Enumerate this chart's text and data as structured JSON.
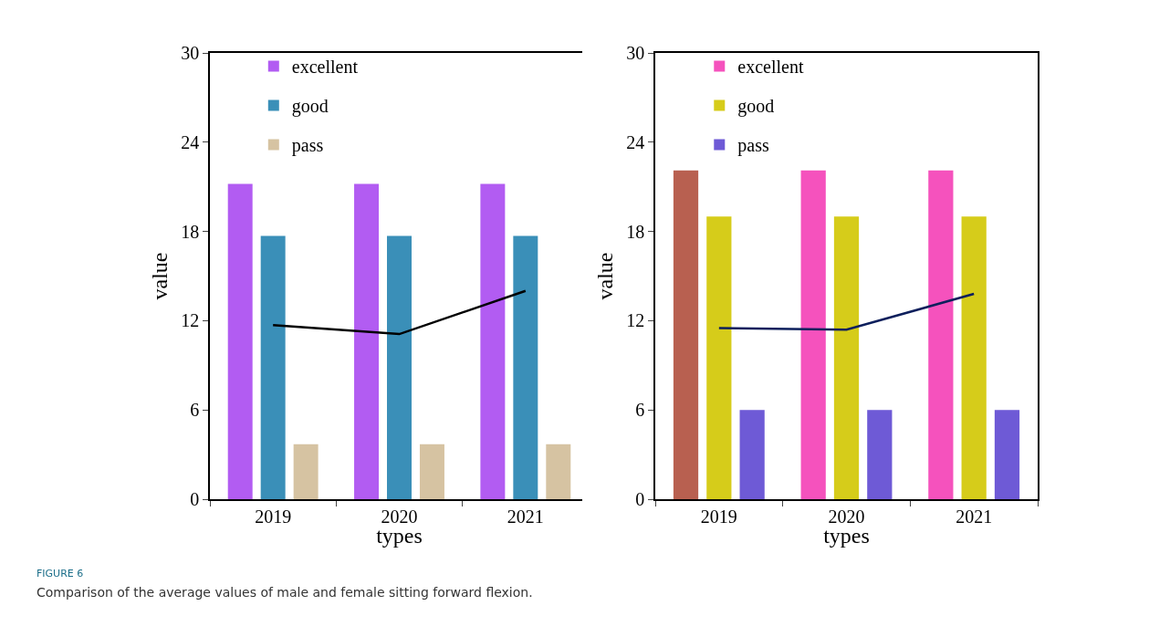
{
  "chart_data": [
    {
      "type": "bar",
      "categories": [
        "2019",
        "2020",
        "2021"
      ],
      "xlabel": "types",
      "ylabel": "value",
      "ylim": [
        0,
        30
      ],
      "yticks": [
        0,
        6,
        12,
        18,
        24,
        30
      ],
      "grid": false,
      "legend": "top left",
      "series": [
        {
          "name": "excellent",
          "color": "#b25cf2",
          "values": [
            21.2,
            21.2,
            21.2
          ]
        },
        {
          "name": "good",
          "color": "#3a8fb8",
          "values": [
            17.7,
            17.7,
            17.7
          ]
        },
        {
          "name": "pass",
          "color": "#d6c3a2",
          "values": [
            3.7,
            3.7,
            3.7
          ]
        },
        {
          "type": "line",
          "color": "#000000",
          "values": [
            11.7,
            11.1,
            14.0
          ]
        }
      ],
      "annotations": [
        "FIGURE 6",
        "Comparison of the average values of male and female sitting forward flexion."
      ]
    },
    {
      "type": "bar",
      "categories": [
        "2019",
        "2020",
        "2021"
      ],
      "xlabel": "types",
      "ylabel": "value",
      "ylim": [
        0,
        30
      ],
      "yticks": [
        0,
        6,
        12,
        18,
        24,
        30
      ],
      "grid": false,
      "legend": "top left",
      "series": [
        {
          "name": "excellent",
          "color": "#f552bd",
          "colors": [
            "#b86050",
            "#f552bd",
            "#f552bd"
          ],
          "values": [
            22.1,
            22.1,
            22.1
          ]
        },
        {
          "name": "good",
          "color": "#d6cc1a",
          "values": [
            19.0,
            19.0,
            19.0
          ]
        },
        {
          "name": "pass",
          "color": "#6e5ad6",
          "values": [
            6.0,
            6.0,
            6.0
          ]
        },
        {
          "type": "line",
          "color": "#0d1f5c",
          "values": [
            11.5,
            11.4,
            13.8
          ]
        }
      ]
    }
  ]
}
